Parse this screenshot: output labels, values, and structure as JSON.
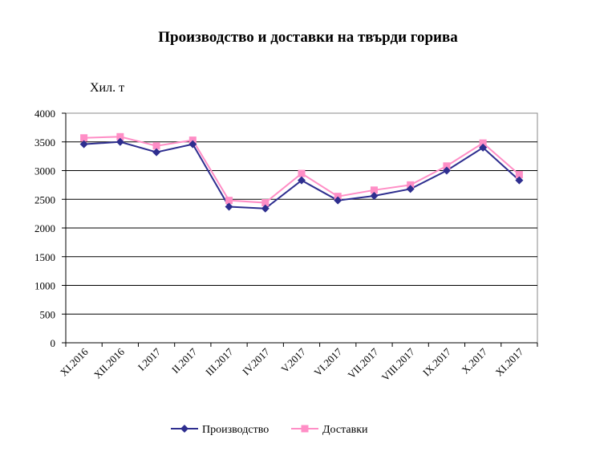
{
  "chart_data": {
    "type": "line",
    "title": "Производство и доставки на твърди горива",
    "ylabel": "Хил. т",
    "xlabel": "",
    "categories": [
      "XI.2016",
      "XII.2016",
      "I.2017",
      "II.2017",
      "III.2017",
      "IV.2017",
      "V.2017",
      "VI.2017",
      "VII.2017",
      "VIII.2017",
      "IX.2017",
      "X.2017",
      "XI.2017"
    ],
    "ylim": [
      0,
      4000
    ],
    "yticks": [
      0,
      500,
      1000,
      1500,
      2000,
      2500,
      3000,
      3500,
      4000
    ],
    "grid": true,
    "legend": "bottom",
    "series": [
      {
        "name": "Производство",
        "color": "#2e2e8f",
        "marker": "diamond",
        "values": [
          3460,
          3500,
          3320,
          3460,
          2370,
          2340,
          2830,
          2480,
          2560,
          2680,
          3000,
          3400,
          2830
        ]
      },
      {
        "name": "Доставки",
        "color": "#ff8ec6",
        "marker": "square",
        "values": [
          3570,
          3590,
          3430,
          3530,
          2480,
          2440,
          2950,
          2550,
          2660,
          2750,
          3080,
          3480,
          2930
        ]
      }
    ]
  }
}
